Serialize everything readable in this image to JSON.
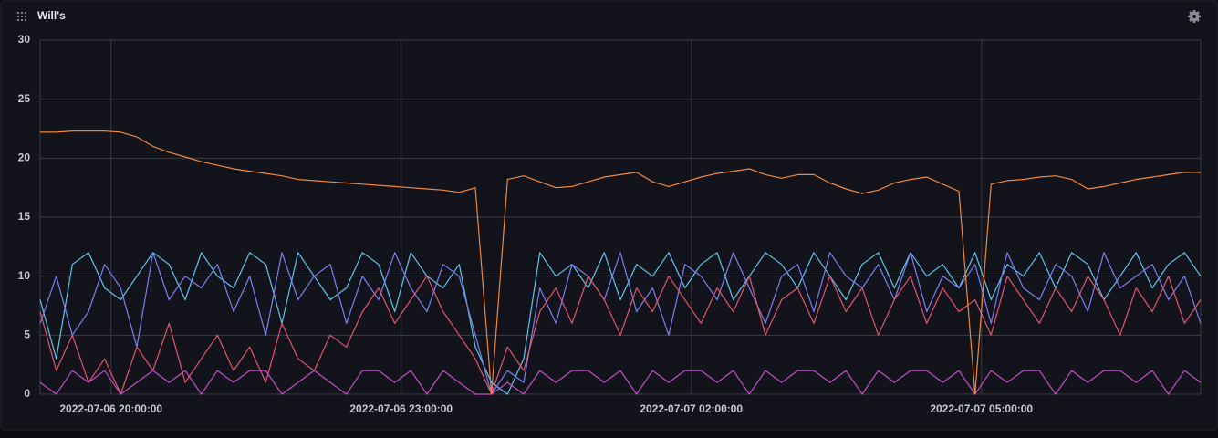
{
  "chart_data": {
    "type": "line",
    "title": "Will's",
    "x": [
      "2022-07-06 19:16:00",
      "2022-07-06 19:26:00",
      "2022-07-06 19:36:00",
      "2022-07-06 19:46:00",
      "2022-07-06 19:56:00",
      "2022-07-06 20:06:00",
      "2022-07-06 20:16:00",
      "2022-07-06 20:26:00",
      "2022-07-06 20:36:00",
      "2022-07-06 20:46:00",
      "2022-07-06 20:56:00",
      "2022-07-06 21:06:00",
      "2022-07-06 21:16:00",
      "2022-07-06 21:26:00",
      "2022-07-06 21:36:00",
      "2022-07-06 21:46:00",
      "2022-07-06 21:56:00",
      "2022-07-06 22:06:00",
      "2022-07-06 22:16:00",
      "2022-07-06 22:26:00",
      "2022-07-06 22:36:00",
      "2022-07-06 22:46:00",
      "2022-07-06 22:56:00",
      "2022-07-06 23:06:00",
      "2022-07-06 23:16:00",
      "2022-07-06 23:26:00",
      "2022-07-06 23:36:00",
      "2022-07-06 23:46:00",
      "2022-07-06 23:56:00",
      "2022-07-07 00:06:00",
      "2022-07-07 00:16:00",
      "2022-07-07 00:26:00",
      "2022-07-07 00:36:00",
      "2022-07-07 00:46:00",
      "2022-07-07 00:56:00",
      "2022-07-07 01:06:00",
      "2022-07-07 01:16:00",
      "2022-07-07 01:26:00",
      "2022-07-07 01:36:00",
      "2022-07-07 01:46:00",
      "2022-07-07 01:56:00",
      "2022-07-07 02:06:00",
      "2022-07-07 02:16:00",
      "2022-07-07 02:26:00",
      "2022-07-07 02:36:00",
      "2022-07-07 02:46:00",
      "2022-07-07 02:56:00",
      "2022-07-07 03:06:00",
      "2022-07-07 03:16:00",
      "2022-07-07 03:26:00",
      "2022-07-07 03:36:00",
      "2022-07-07 03:46:00",
      "2022-07-07 03:56:00",
      "2022-07-07 04:06:00",
      "2022-07-07 04:16:00",
      "2022-07-07 04:26:00",
      "2022-07-07 04:36:00",
      "2022-07-07 04:46:00",
      "2022-07-07 04:56:00",
      "2022-07-07 05:06:00",
      "2022-07-07 05:16:00",
      "2022-07-07 05:26:00",
      "2022-07-07 05:36:00",
      "2022-07-07 05:46:00",
      "2022-07-07 05:56:00",
      "2022-07-07 06:06:00",
      "2022-07-07 06:16:00",
      "2022-07-07 06:26:00",
      "2022-07-07 06:36:00",
      "2022-07-07 06:46:00",
      "2022-07-07 06:56:00",
      "2022-07-07 07:06:00",
      "2022-07-07 07:16:00"
    ],
    "series": [
      {
        "color": "#5fc6ec",
        "values": [
          8,
          3,
          11,
          12,
          9,
          8,
          10,
          12,
          11,
          8,
          12,
          10,
          9,
          12,
          11,
          6,
          12,
          10,
          8,
          9,
          12,
          11,
          7,
          12,
          10,
          9,
          11,
          4,
          1,
          0,
          3,
          12,
          10,
          11,
          9,
          12,
          8,
          11,
          10,
          12,
          9,
          11,
          12,
          8,
          10,
          12,
          11,
          9,
          12,
          10,
          8,
          11,
          12,
          9,
          12,
          10,
          11,
          9,
          12,
          8,
          11,
          10,
          12,
          9,
          12,
          11,
          8,
          10,
          12,
          9,
          11,
          12,
          10
        ]
      },
      {
        "color": "#7b80f0",
        "values": [
          6,
          10,
          5,
          7,
          11,
          9,
          4,
          12,
          8,
          10,
          9,
          11,
          7,
          10,
          5,
          12,
          8,
          10,
          11,
          6,
          10,
          8,
          12,
          9,
          7,
          11,
          10,
          5,
          0,
          2,
          1,
          9,
          6,
          11,
          10,
          8,
          12,
          7,
          9,
          5,
          11,
          10,
          8,
          12,
          9,
          6,
          10,
          11,
          7,
          12,
          10,
          9,
          11,
          8,
          12,
          7,
          10,
          9,
          11,
          6,
          12,
          9,
          8,
          11,
          10,
          7,
          12,
          9,
          10,
          11,
          8,
          10,
          6
        ]
      },
      {
        "color": "#e0566e",
        "values": [
          7,
          2,
          5,
          1,
          3,
          0,
          4,
          2,
          6,
          1,
          3,
          5,
          2,
          4,
          1,
          6,
          3,
          2,
          5,
          4,
          7,
          9,
          6,
          8,
          10,
          7,
          5,
          3,
          0,
          4,
          2,
          7,
          9,
          6,
          10,
          8,
          5,
          9,
          7,
          10,
          8,
          6,
          9,
          7,
          10,
          5,
          8,
          9,
          6,
          10,
          7,
          9,
          5,
          8,
          10,
          6,
          9,
          7,
          8,
          5,
          10,
          8,
          6,
          9,
          7,
          10,
          8,
          5,
          9,
          7,
          10,
          6,
          8
        ]
      },
      {
        "color": "#c24fc4",
        "values": [
          1,
          0,
          2,
          1,
          2,
          0,
          1,
          2,
          1,
          2,
          0,
          2,
          1,
          2,
          2,
          0,
          1,
          2,
          1,
          0,
          2,
          2,
          1,
          2,
          0,
          2,
          1,
          0,
          0,
          1,
          0,
          2,
          1,
          2,
          2,
          1,
          2,
          0,
          2,
          1,
          2,
          2,
          1,
          2,
          0,
          2,
          1,
          2,
          2,
          1,
          2,
          0,
          2,
          1,
          2,
          2,
          1,
          2,
          0,
          2,
          1,
          2,
          2,
          0,
          2,
          1,
          2,
          2,
          1,
          2,
          0,
          2,
          1
        ]
      },
      {
        "color": "#f0883e",
        "values": [
          22.2,
          22.2,
          22.3,
          22.3,
          22.3,
          22.2,
          21.8,
          21.0,
          20.5,
          20.1,
          19.7,
          19.4,
          19.1,
          18.9,
          18.7,
          18.5,
          18.2,
          18.1,
          18.0,
          17.9,
          17.8,
          17.7,
          17.6,
          17.5,
          17.4,
          17.3,
          17.1,
          17.5,
          0,
          18.2,
          18.5,
          18.0,
          17.5,
          17.6,
          18.0,
          18.4,
          18.6,
          18.8,
          18.0,
          17.6,
          18.0,
          18.4,
          18.7,
          18.9,
          19.1,
          18.6,
          18.3,
          18.6,
          18.6,
          17.9,
          17.4,
          17.0,
          17.3,
          17.9,
          18.2,
          18.4,
          17.8,
          17.2,
          0,
          17.8,
          18.1,
          18.2,
          18.4,
          18.5,
          18.2,
          17.4,
          17.6,
          17.9,
          18.2,
          18.4,
          18.6,
          18.8,
          18.8
        ]
      }
    ],
    "xlim": [
      "2022-07-06 19:16:00",
      "2022-07-07 07:16:00"
    ],
    "xticks": [
      "2022-07-06 20:00:00",
      "2022-07-06 23:00:00",
      "2022-07-07 02:00:00",
      "2022-07-07 05:00:00"
    ],
    "ylim": [
      0,
      30
    ],
    "yticks": [
      0,
      5,
      10,
      15,
      20,
      25,
      30
    ],
    "grid": true
  }
}
